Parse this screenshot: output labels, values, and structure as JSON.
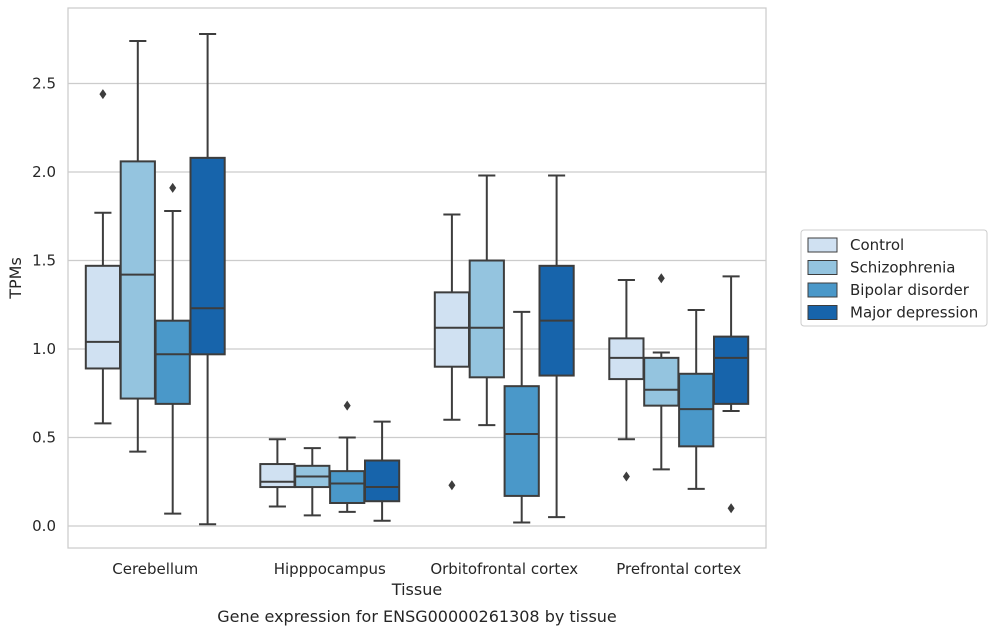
{
  "chart_data": {
    "type": "boxplot",
    "caption": "Gene expression for ENSG00000261308 by tissue",
    "xlabel": "Tissue",
    "ylabel": "TPMs",
    "ylim": [
      -0.12,
      2.93
    ],
    "yticks": [
      0.0,
      0.5,
      1.0,
      1.5,
      2.0,
      2.5
    ],
    "ytick_labels": [
      "0.0",
      "0.5",
      "1.0",
      "1.5",
      "2.0",
      "2.5"
    ],
    "grid": "horizontal",
    "legend_position": "right",
    "categories": [
      "Cerebellum",
      "Hipppocampus",
      "Orbitofrontal cortex",
      "Prefrontal cortex"
    ],
    "series": [
      {
        "name": "Control",
        "color": "#d0e1f2",
        "boxes": [
          {
            "whislo": 0.58,
            "q1": 0.89,
            "med": 1.04,
            "q3": 1.47,
            "whishi": 1.77,
            "fliers": [
              2.44
            ]
          },
          {
            "whislo": 0.11,
            "q1": 0.22,
            "med": 0.25,
            "q3": 0.35,
            "whishi": 0.49,
            "fliers": []
          },
          {
            "whislo": 0.6,
            "q1": 0.9,
            "med": 1.12,
            "q3": 1.32,
            "whishi": 1.76,
            "fliers": [
              0.23
            ]
          },
          {
            "whislo": 0.49,
            "q1": 0.83,
            "med": 0.95,
            "q3": 1.06,
            "whishi": 1.39,
            "fliers": [
              0.28
            ]
          }
        ]
      },
      {
        "name": "Schizophrenia",
        "color": "#94c4df",
        "boxes": [
          {
            "whislo": 0.42,
            "q1": 0.72,
            "med": 1.42,
            "q3": 2.06,
            "whishi": 2.74,
            "fliers": []
          },
          {
            "whislo": 0.06,
            "q1": 0.22,
            "med": 0.28,
            "q3": 0.34,
            "whishi": 0.44,
            "fliers": []
          },
          {
            "whislo": 0.57,
            "q1": 0.84,
            "med": 1.12,
            "q3": 1.5,
            "whishi": 1.98,
            "fliers": []
          },
          {
            "whislo": 0.32,
            "q1": 0.68,
            "med": 0.77,
            "q3": 0.95,
            "whishi": 0.98,
            "fliers": [
              1.4
            ]
          }
        ]
      },
      {
        "name": "Bipolar disorder",
        "color": "#4a98c9",
        "boxes": [
          {
            "whislo": 0.07,
            "q1": 0.69,
            "med": 0.97,
            "q3": 1.16,
            "whishi": 1.78,
            "fliers": [
              1.91
            ]
          },
          {
            "whislo": 0.08,
            "q1": 0.13,
            "med": 0.24,
            "q3": 0.31,
            "whishi": 0.5,
            "fliers": [
              0.68
            ]
          },
          {
            "whislo": 0.02,
            "q1": 0.17,
            "med": 0.52,
            "q3": 0.79,
            "whishi": 1.21,
            "fliers": []
          },
          {
            "whislo": 0.21,
            "q1": 0.45,
            "med": 0.66,
            "q3": 0.86,
            "whishi": 1.22,
            "fliers": []
          }
        ]
      },
      {
        "name": "Major depression",
        "color": "#1764ab",
        "boxes": [
          {
            "whislo": 0.01,
            "q1": 0.97,
            "med": 1.23,
            "q3": 2.08,
            "whishi": 2.78,
            "fliers": []
          },
          {
            "whislo": 0.03,
            "q1": 0.14,
            "med": 0.22,
            "q3": 0.37,
            "whishi": 0.59,
            "fliers": []
          },
          {
            "whislo": 0.05,
            "q1": 0.85,
            "med": 1.16,
            "q3": 1.47,
            "whishi": 1.98,
            "fliers": []
          },
          {
            "whislo": 0.65,
            "q1": 0.69,
            "med": 0.95,
            "q3": 1.07,
            "whishi": 1.41,
            "fliers": [
              0.1
            ]
          }
        ]
      }
    ]
  }
}
